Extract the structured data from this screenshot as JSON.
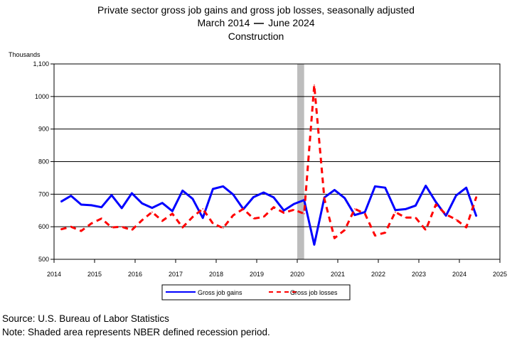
{
  "chart_data": {
    "type": "line",
    "title": "Private sector gross job gains and gross job losses, seasonally adjusted",
    "subtitle_parts": [
      "March 2014",
      "June 2024"
    ],
    "series_label": "Construction",
    "ylabel": "Thousands",
    "ylim": [
      500,
      1100
    ],
    "y_ticks": [
      "500",
      "600",
      "700",
      "800",
      "900",
      "1000",
      "1,100"
    ],
    "y_tick_values": [
      500,
      600,
      700,
      800,
      900,
      1000,
      1100
    ],
    "x_ticks": [
      "2014",
      "2015",
      "2016",
      "2017",
      "2018",
      "2019",
      "2020",
      "2021",
      "2022",
      "2023",
      "2024",
      "2025"
    ],
    "xlim": [
      2014,
      2025
    ],
    "grid": "horizontal",
    "legend_placement": "bottom",
    "recession": {
      "start": 2020.0,
      "end": 2020.17
    },
    "x": [
      2014.17,
      2014.42,
      2014.67,
      2014.92,
      2015.17,
      2015.42,
      2015.67,
      2015.92,
      2016.17,
      2016.42,
      2016.67,
      2016.92,
      2017.17,
      2017.42,
      2017.67,
      2017.92,
      2018.17,
      2018.42,
      2018.67,
      2018.92,
      2019.17,
      2019.42,
      2019.67,
      2019.92,
      2020.17,
      2020.42,
      2020.67,
      2020.92,
      2021.17,
      2021.42,
      2021.67,
      2021.92,
      2022.17,
      2022.42,
      2022.67,
      2022.92,
      2023.17,
      2023.42,
      2023.67,
      2023.92,
      2024.17,
      2024.42
    ],
    "series": [
      {
        "name": "Gross job gains",
        "color": "#0000ff",
        "style": "solid",
        "values": [
          677,
          695,
          668,
          666,
          660,
          697,
          657,
          703,
          672,
          658,
          673,
          648,
          711,
          686,
          627,
          716,
          724,
          699,
          654,
          691,
          705,
          690,
          650,
          670,
          682,
          545,
          690,
          713,
          688,
          636,
          645,
          724,
          720,
          651,
          654,
          665,
          726,
          676,
          634,
          696,
          720,
          632
        ]
      },
      {
        "name": "Gross job losses",
        "color": "#ff0000",
        "style": "dashed",
        "values": [
          592,
          600,
          587,
          610,
          625,
          598,
          600,
          590,
          620,
          645,
          618,
          640,
          598,
          630,
          655,
          610,
          596,
          635,
          655,
          625,
          630,
          660,
          643,
          652,
          640,
          1035,
          685,
          565,
          590,
          655,
          640,
          573,
          582,
          645,
          628,
          628,
          590,
          668,
          638,
          622,
          598,
          692
        ]
      }
    ]
  },
  "footer": {
    "source": "Source: U.S. Bureau of Labor Statistics",
    "note": "Note: Shaded area represents NBER defined recession period."
  }
}
